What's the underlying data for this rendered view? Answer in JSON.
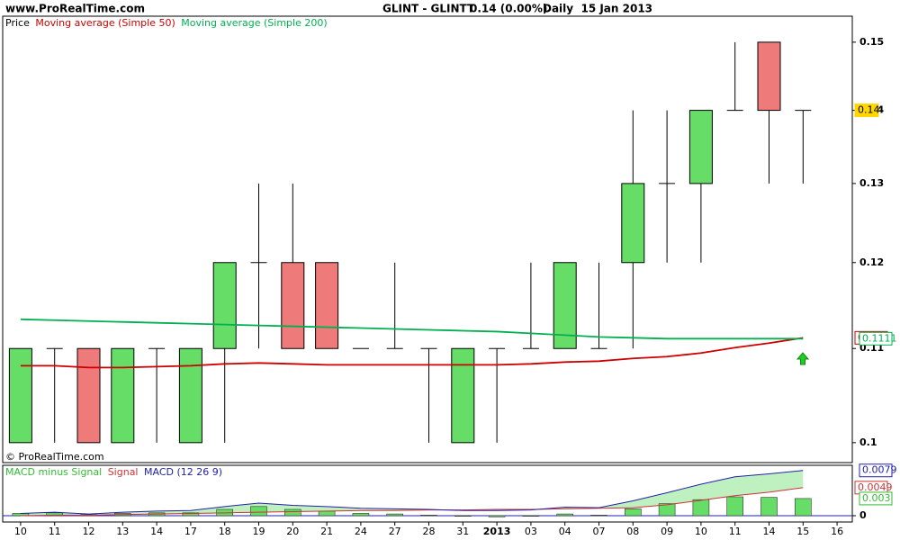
{
  "chart_data": [
    {
      "type": "candlestick",
      "site": "www.ProRealTime.com",
      "instrument": "GLINT - GLINTT",
      "change": "0.14 (0.00%)",
      "period": "Daily  15 Jan 2013",
      "price_label": "Price",
      "copyright": "© ProRealTime.com",
      "categories": [
        "10",
        "11",
        "12",
        "13",
        "14",
        "17",
        "18",
        "19",
        "20",
        "21",
        "24",
        "27",
        "28",
        "31",
        "2013",
        "03",
        "04",
        "07",
        "08",
        "09",
        "10",
        "11",
        "14",
        "15",
        "16"
      ],
      "open": [
        0.1,
        0.11,
        0.11,
        0.1,
        0.11,
        0.1,
        0.11,
        0.12,
        0.12,
        0.12,
        0.11,
        0.11,
        0.11,
        0.1,
        0.11,
        0.11,
        0.11,
        0.11,
        0.12,
        0.13,
        0.13,
        0.14,
        0.15,
        0.14,
        null
      ],
      "high": [
        0.11,
        0.11,
        0.11,
        0.11,
        0.11,
        0.11,
        0.12,
        0.13,
        0.13,
        0.12,
        0.11,
        0.12,
        0.11,
        0.11,
        0.11,
        0.12,
        0.12,
        0.12,
        0.14,
        0.14,
        0.14,
        0.15,
        0.15,
        0.14,
        null
      ],
      "low": [
        0.1,
        0.1,
        0.1,
        0.1,
        0.1,
        0.1,
        0.1,
        0.11,
        0.11,
        0.11,
        0.11,
        0.11,
        0.1,
        0.1,
        0.1,
        0.11,
        0.11,
        0.11,
        0.11,
        0.12,
        0.12,
        0.14,
        0.13,
        0.13,
        null
      ],
      "close": [
        0.11,
        0.11,
        0.1,
        0.11,
        0.11,
        0.11,
        0.12,
        0.12,
        0.11,
        0.11,
        0.11,
        0.11,
        0.11,
        0.11,
        0.11,
        0.11,
        0.12,
        0.11,
        0.13,
        0.13,
        0.14,
        0.14,
        0.14,
        0.14,
        null
      ],
      "up_color": "#66dd66",
      "down_color": "#ee7a7a",
      "series": [
        {
          "name": "Moving average (Simple 50)",
          "color": "#cc0000",
          "values": [
            0.1081,
            0.1081,
            0.1079,
            0.1079,
            0.108,
            0.1081,
            0.1083,
            0.1084,
            0.1083,
            0.1082,
            0.1082,
            0.1082,
            0.1082,
            0.1082,
            0.1082,
            0.1083,
            0.1085,
            0.1086,
            0.1089,
            0.1091,
            0.1095,
            0.1101,
            0.1106,
            0.1112,
            null
          ]
        },
        {
          "name": "Moving average (Simple 200)",
          "color": "#00b050",
          "values": [
            0.1133,
            0.1132,
            0.1131,
            0.113,
            0.1129,
            0.1128,
            0.1127,
            0.1126,
            0.1125,
            0.1124,
            0.1123,
            0.1122,
            0.1121,
            0.112,
            0.1119,
            0.1117,
            0.1115,
            0.1113,
            0.1112,
            0.1111,
            0.1111,
            0.1111,
            0.1111,
            0.1111,
            null
          ]
        }
      ],
      "log_scale": true,
      "ylim": [
        0.098,
        0.154
      ],
      "yticks": [
        0.15,
        0.14,
        0.13,
        0.12,
        0.11,
        0.1
      ],
      "markers": [
        {
          "value": 0.14,
          "label": "0.14",
          "color": "#ffd700",
          "filled": true
        },
        {
          "value": 0.1112,
          "label": "0.1112",
          "color": "#cc0000",
          "filled": false
        },
        {
          "value": 0.1111,
          "label": "0.1111",
          "color": "#00b050",
          "filled": false
        }
      ]
    },
    {
      "type": "macd",
      "series": [
        {
          "name": "MACD minus Signal",
          "color": "#33bb33",
          "fill": "#66dd66",
          "values": [
            0.0004,
            0.0005,
            0.0002,
            0.0004,
            0.0005,
            0.0005,
            0.0011,
            0.0016,
            0.0011,
            0.0008,
            0.0004,
            0.0003,
            0.0001,
            -0.0001,
            -0.0002,
            -0.0001,
            0.0003,
            0.0001,
            0.0012,
            0.0021,
            0.0028,
            0.0033,
            0.0032,
            0.003,
            null
          ]
        },
        {
          "name": "Signal",
          "color": "#cc3333",
          "values": [
            0.0,
            0.0001,
            0.0001,
            0.0002,
            0.0003,
            0.0004,
            0.0005,
            0.0006,
            0.0007,
            0.0008,
            0.0009,
            0.0009,
            0.001,
            0.001,
            0.0011,
            0.0011,
            0.0012,
            0.0013,
            0.0014,
            0.0019,
            0.0027,
            0.0035,
            0.0041,
            0.0049,
            null
          ]
        },
        {
          "name": "MACD (12 26 9)",
          "color": "#2222aa",
          "values": [
            0.0004,
            0.0006,
            0.0003,
            0.0006,
            0.0008,
            0.0009,
            0.0016,
            0.0022,
            0.0018,
            0.0016,
            0.0013,
            0.0012,
            0.0011,
            0.0009,
            0.0009,
            0.001,
            0.0015,
            0.0014,
            0.0026,
            0.004,
            0.0055,
            0.0068,
            0.0073,
            0.0079,
            null
          ]
        }
      ],
      "ylim": [
        -0.0011,
        0.0088
      ],
      "yticks": [
        0
      ],
      "markers": [
        {
          "value": 0.0079,
          "label": "0.0079",
          "color": "#2222aa",
          "filled": false
        },
        {
          "value": 0.0049,
          "label": "0.0049",
          "color": "#cc3333",
          "filled": false
        },
        {
          "value": 0.003,
          "label": "0.003",
          "color": "#33bb33",
          "filled": false
        }
      ]
    }
  ]
}
